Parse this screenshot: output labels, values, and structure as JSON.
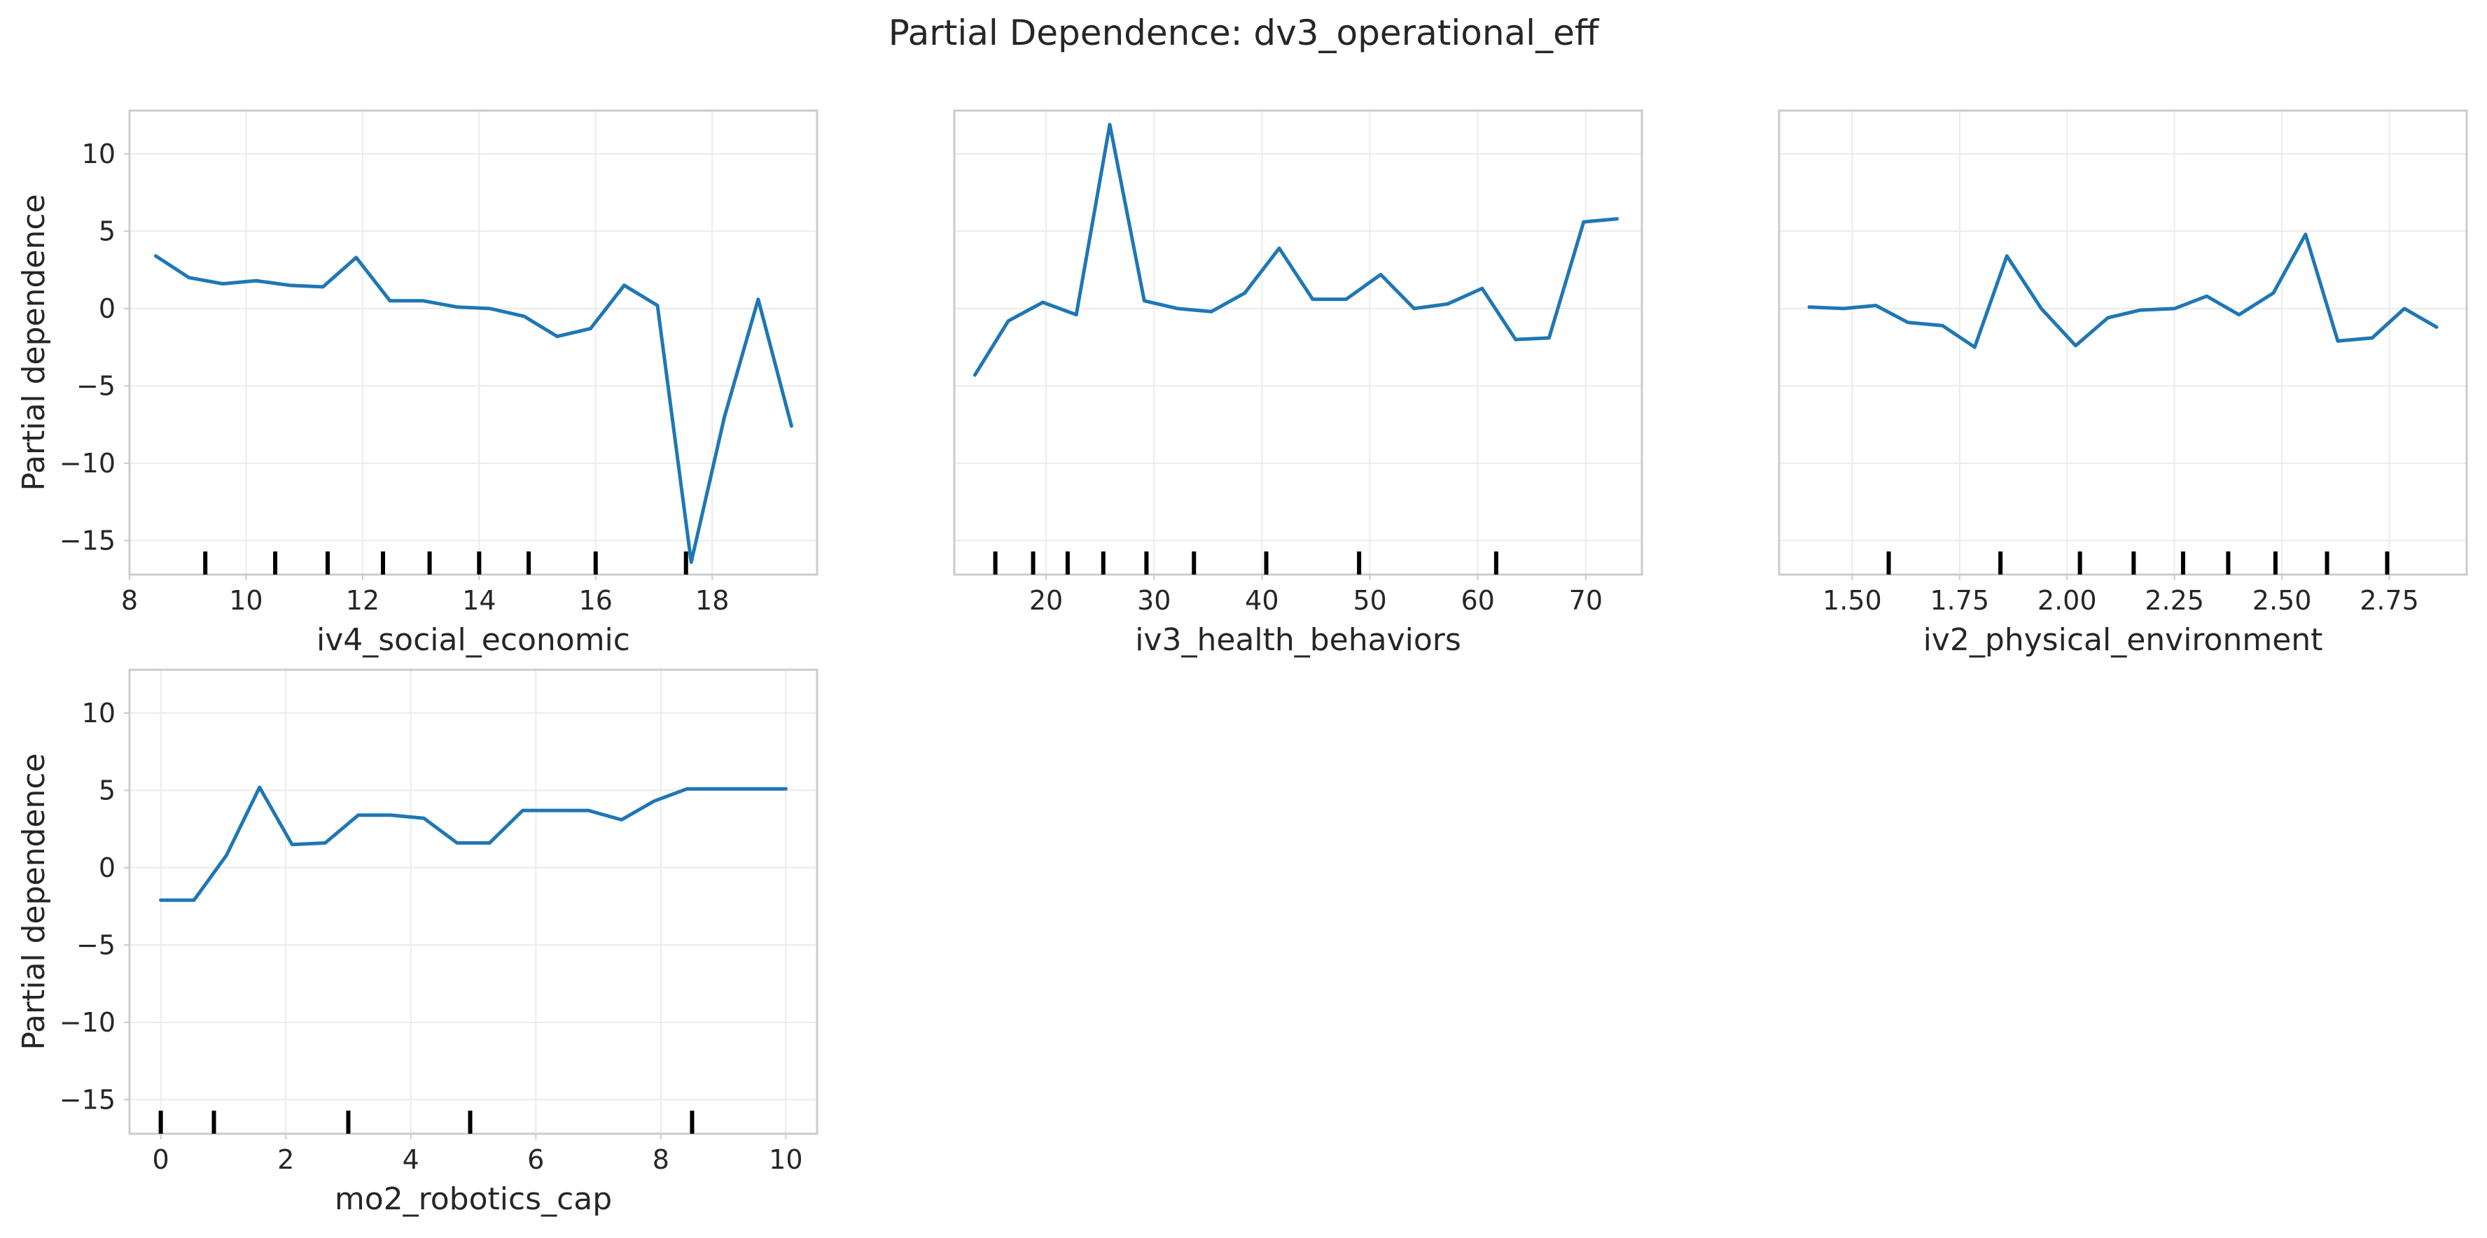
{
  "title": "Partial Dependence: dv3_operational_eff",
  "chart_data": [
    {
      "type": "line",
      "xlabel": "iv4_social_economic",
      "ylabel": "Partial dependence",
      "xlim": [
        8.0,
        19.8
      ],
      "ylim": [
        -17.2,
        12.8
      ],
      "xticks": [
        8,
        10,
        12,
        14,
        16,
        18
      ],
      "xtick_labels": [
        "8",
        "10",
        "12",
        "14",
        "16",
        "18"
      ],
      "yticks": [
        10,
        5,
        0,
        -5,
        -10,
        -15
      ],
      "ytick_labels": [
        "10",
        "5",
        "0",
        "−5",
        "−10",
        "−15"
      ],
      "show_yticklabels": true,
      "grid": true,
      "series": [
        {
          "x": [
            8.45,
            9.02,
            9.6,
            10.17,
            10.75,
            11.32,
            11.89,
            12.47,
            13.04,
            13.62,
            14.19,
            14.77,
            15.34,
            15.91,
            16.49,
            17.06,
            17.64,
            18.21,
            18.79,
            19.36
          ],
          "y": [
            3.4,
            2.0,
            1.6,
            1.8,
            1.5,
            1.4,
            3.3,
            0.5,
            0.5,
            0.1,
            0.0,
            -0.5,
            -1.8,
            -1.3,
            1.5,
            0.2,
            -16.4,
            -7.0,
            0.6,
            -7.6
          ]
        }
      ],
      "rug": [
        9.3,
        10.5,
        11.4,
        12.35,
        13.15,
        14.0,
        14.85,
        16.0,
        17.55
      ]
    },
    {
      "type": "line",
      "xlabel": "iv3_health_behaviors",
      "ylabel": "",
      "xlim": [
        11.5,
        75.2
      ],
      "ylim": [
        -17.2,
        12.8
      ],
      "xticks": [
        20,
        30,
        40,
        50,
        60,
        70
      ],
      "xtick_labels": [
        "20",
        "30",
        "40",
        "50",
        "60",
        "70"
      ],
      "yticks": [
        10,
        5,
        0,
        -5,
        -10,
        -15
      ],
      "ytick_labels": [],
      "show_yticklabels": false,
      "grid": true,
      "series": [
        {
          "x": [
            13.4,
            16.5,
            19.7,
            22.8,
            25.9,
            29.1,
            32.2,
            35.3,
            38.4,
            41.6,
            44.7,
            47.8,
            51.0,
            54.1,
            57.2,
            60.4,
            63.5,
            66.6,
            69.8,
            72.9
          ],
          "y": [
            -4.3,
            -0.8,
            0.4,
            -0.4,
            11.9,
            0.5,
            0.0,
            -0.2,
            1.0,
            3.9,
            0.6,
            0.6,
            2.2,
            0.0,
            0.3,
            1.3,
            -2.0,
            -1.9,
            5.6,
            5.8
          ]
        }
      ],
      "rug": [
        15.3,
        18.8,
        22.0,
        25.3,
        29.3,
        33.7,
        40.4,
        49.0,
        61.7
      ]
    },
    {
      "type": "line",
      "xlabel": "iv2_physical_environment",
      "ylabel": "",
      "xlim": [
        1.33,
        2.93
      ],
      "ylim": [
        -17.2,
        12.8
      ],
      "xticks": [
        1.5,
        1.75,
        2.0,
        2.25,
        2.5,
        2.75
      ],
      "xtick_labels": [
        "1.50",
        "1.75",
        "2.00",
        "2.25",
        "2.50",
        "2.75"
      ],
      "yticks": [
        10,
        5,
        0,
        -5,
        -10,
        -15
      ],
      "ytick_labels": [],
      "show_yticklabels": false,
      "grid": true,
      "series": [
        {
          "x": [
            1.4,
            1.48,
            1.555,
            1.63,
            1.71,
            1.785,
            1.86,
            1.94,
            2.02,
            2.095,
            2.17,
            2.25,
            2.325,
            2.4,
            2.48,
            2.555,
            2.63,
            2.71,
            2.785,
            2.86
          ],
          "y": [
            0.1,
            0.0,
            0.2,
            -0.9,
            -1.1,
            -2.5,
            3.4,
            0.0,
            -2.4,
            -0.6,
            -0.1,
            0.0,
            0.8,
            -0.4,
            1.0,
            4.8,
            -2.1,
            -1.9,
            0.0,
            -1.2
          ]
        }
      ],
      "rug": [
        1.585,
        1.845,
        2.03,
        2.155,
        2.27,
        2.375,
        2.485,
        2.605,
        2.745
      ]
    },
    {
      "type": "line",
      "xlabel": "mo2_robotics_cap",
      "ylabel": "Partial dependence",
      "xlim": [
        -0.5,
        10.5
      ],
      "ylim": [
        -17.2,
        12.8
      ],
      "xticks": [
        0,
        2,
        4,
        6,
        8,
        10
      ],
      "xtick_labels": [
        "0",
        "2",
        "4",
        "6",
        "8",
        "10"
      ],
      "yticks": [
        10,
        5,
        0,
        -5,
        -10,
        -15
      ],
      "ytick_labels": [
        "10",
        "5",
        "0",
        "−5",
        "−10",
        "−15"
      ],
      "show_yticklabels": true,
      "grid": true,
      "series": [
        {
          "x": [
            0.0,
            0.53,
            1.05,
            1.58,
            2.1,
            2.63,
            3.16,
            3.68,
            4.21,
            4.74,
            5.26,
            5.79,
            6.32,
            6.84,
            7.37,
            7.89,
            8.42,
            8.95,
            9.47,
            10.0
          ],
          "y": [
            -2.1,
            -2.1,
            0.8,
            5.2,
            1.5,
            1.6,
            3.4,
            3.4,
            3.2,
            1.6,
            1.6,
            3.7,
            3.7,
            3.7,
            3.1,
            4.3,
            5.1,
            5.1,
            5.1,
            5.1
          ]
        }
      ],
      "rug": [
        0.0,
        0.85,
        3.0,
        4.95,
        8.5
      ]
    }
  ]
}
